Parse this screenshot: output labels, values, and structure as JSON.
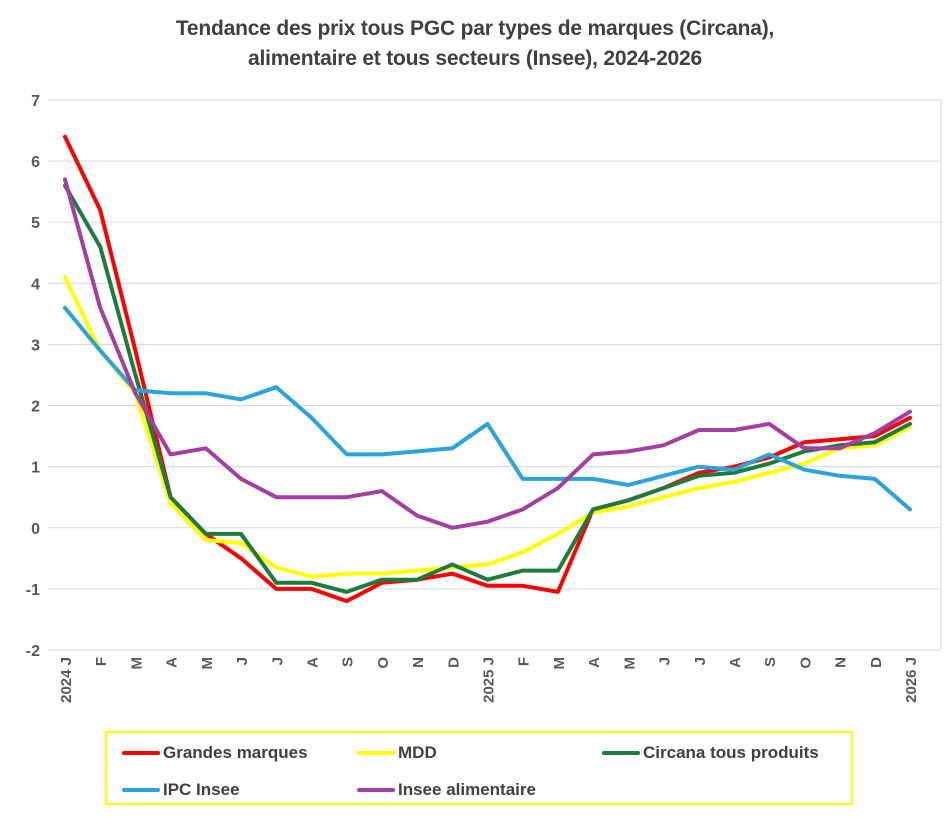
{
  "title": {
    "line1": "Tendance des prix tous PGC par types de marques (Circana),",
    "line2": "alimentaire et tous secteurs (Insee), 2024-2026"
  },
  "colors": {
    "grandes_marques": "#FF0000",
    "mdd": "#FFFF00",
    "circana_tous_produits": "#1F7B3C",
    "ipc_insee": "#2BA3DC",
    "insee_alimentaire": "#A23FA0",
    "gridline": "#D9D9D9",
    "tick_text": "#595959",
    "title_text": "#404040",
    "legend_border": "#FFFF00"
  },
  "chart_data": {
    "type": "line",
    "title": "Tendance des prix tous PGC par types de marques (Circana), alimentaire et tous secteurs (Insee), 2024-2026",
    "x_labels": [
      "2024 J",
      "F",
      "M",
      "A",
      "M",
      "J",
      "J",
      "A",
      "S",
      "O",
      "N",
      "D",
      "2025 J",
      "F",
      "M",
      "A",
      "M",
      "J",
      "J",
      "A",
      "S",
      "O",
      "N",
      "D",
      "2026 J"
    ],
    "ylim": [
      -2,
      7
    ],
    "ytick_interval": 1,
    "grid": "horizontal",
    "legend_position": "bottom",
    "series": [
      {
        "name": "Grandes marques",
        "color": "#FF0000",
        "values": [
          6.4,
          5.2,
          2.9,
          0.5,
          -0.1,
          -0.5,
          -1.0,
          -1.0,
          -1.2,
          -0.9,
          -0.85,
          -0.75,
          -0.95,
          -0.95,
          -1.05,
          0.3,
          0.45,
          0.65,
          0.9,
          1.0,
          1.15,
          1.4,
          1.45,
          1.5,
          1.8
        ]
      },
      {
        "name": "MDD",
        "color": "#FFFF00",
        "values": [
          4.1,
          2.9,
          2.2,
          0.4,
          -0.2,
          -0.25,
          -0.65,
          -0.8,
          -0.75,
          -0.75,
          -0.7,
          -0.65,
          -0.6,
          -0.4,
          -0.1,
          0.25,
          0.35,
          0.5,
          0.65,
          0.75,
          0.9,
          1.05,
          1.3,
          1.35,
          1.65
        ]
      },
      {
        "name": "Circana tous produits",
        "color": "#1F7B3C",
        "values": [
          5.6,
          4.6,
          2.5,
          0.5,
          -0.1,
          -0.1,
          -0.9,
          -0.9,
          -1.05,
          -0.85,
          -0.85,
          -0.6,
          -0.85,
          -0.7,
          -0.7,
          0.3,
          0.45,
          0.65,
          0.85,
          0.9,
          1.05,
          1.25,
          1.35,
          1.4,
          1.7
        ]
      },
      {
        "name": "IPC Insee",
        "color": "#2BA3DC",
        "values": [
          3.6,
          2.9,
          2.25,
          2.2,
          2.2,
          2.1,
          2.3,
          1.8,
          1.2,
          1.2,
          1.25,
          1.3,
          1.7,
          0.8,
          0.8,
          0.8,
          0.7,
          0.85,
          1.0,
          0.95,
          1.2,
          0.95,
          0.85,
          0.8,
          0.3
        ]
      },
      {
        "name": "Insee alimentaire",
        "color": "#A23FA0",
        "values": [
          5.7,
          3.6,
          2.2,
          1.2,
          1.3,
          0.8,
          0.5,
          0.5,
          0.5,
          0.6,
          0.2,
          0.0,
          0.1,
          0.3,
          0.65,
          1.2,
          1.25,
          1.35,
          1.6,
          1.6,
          1.7,
          1.3,
          1.3,
          1.55,
          1.9
        ]
      }
    ]
  },
  "legend": {
    "row1": [
      "Grandes marques",
      "MDD",
      "Circana tous produits"
    ],
    "row2": [
      "IPC Insee",
      "Insee alimentaire"
    ]
  }
}
